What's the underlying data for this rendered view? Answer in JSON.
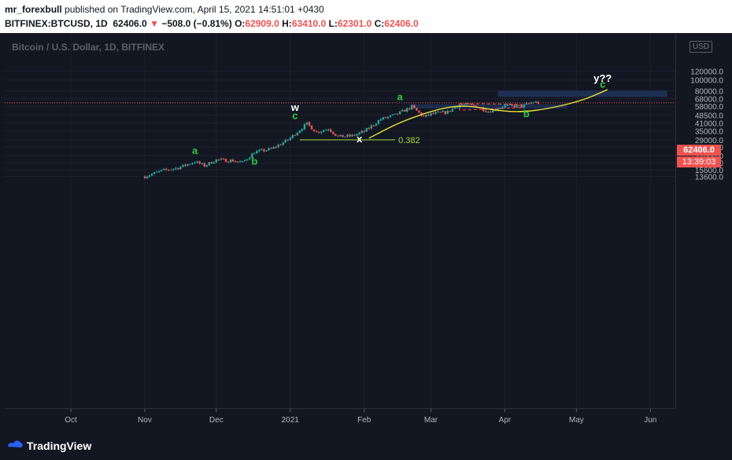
{
  "header": {
    "author": "mr_forexbull",
    "published_text": "published on TradingView.com, April 15, 2021 14:51:01 +0430",
    "symbol": "BITFINEX:BTCUSD, 1D",
    "last": "62406.0",
    "change_arrow": "▼",
    "change": "−508.0 (−0.81%)",
    "o_label": "O:",
    "o_value": "62909.0",
    "h_label": "H:",
    "h_value": "63410.0",
    "l_label": "L:",
    "l_value": "62301.0",
    "c_label": "C:",
    "c_value": "62406.0"
  },
  "chart_title": "Bitcoin / U.S. Dollar, 1D, BITFINEX",
  "currency_badge": "USD",
  "price_tag": "62406.0",
  "countdown": "13:39:03",
  "footer": {
    "brand": "TradingView"
  },
  "colors": {
    "up": "#26a69a",
    "down": "#ef5350",
    "wave": "#2ecc40",
    "curve": "#e8e337",
    "fib": "#a3d93f",
    "box": "#1e2f52",
    "background": "#131722"
  },
  "chart_data": {
    "type": "candlestick",
    "title": "Bitcoin / U.S. Dollar, 1D, BITFINEX",
    "scale": "log",
    "y_ticks": [
      13600,
      15600,
      18000,
      21000,
      25000,
      29000,
      35000,
      41000,
      48500,
      58000,
      68000,
      80000,
      100000,
      120000
    ],
    "y_tick_labels": [
      "13600.0",
      "15600.0",
      "18000.0",
      "21000.0",
      "25000.0",
      "29000.0",
      "35000.0",
      "41000.0",
      "48500.0",
      "58000.0",
      "68000.0",
      "80000.0",
      "100000.0",
      "120000.0"
    ],
    "x_labels": [
      "Oct",
      "Nov",
      "Dec",
      "2021",
      "Feb",
      "Mar",
      "Apr",
      "May",
      "Jun"
    ],
    "x_label_dates": [
      "2020-10-01",
      "2020-11-01",
      "2020-12-01",
      "2021-01-01",
      "2021-02-01",
      "2021-03-01",
      "2021-04-01",
      "2021-05-01",
      "2021-06-01"
    ],
    "last_price": 62406,
    "price_path": [
      [
        "2020-11-01",
        13600
      ],
      [
        "2020-11-08",
        15300
      ],
      [
        "2020-11-15",
        16300
      ],
      [
        "2020-11-22",
        18500
      ],
      [
        "2020-11-26",
        17000
      ],
      [
        "2020-12-01",
        19200
      ],
      [
        "2020-12-08",
        18900
      ],
      [
        "2020-12-12",
        18200
      ],
      [
        "2020-12-17",
        22500
      ],
      [
        "2020-12-24",
        24000
      ],
      [
        "2020-12-31",
        29000
      ],
      [
        "2021-01-08",
        40500
      ],
      [
        "2021-01-12",
        34000
      ],
      [
        "2021-01-17",
        36500
      ],
      [
        "2021-01-21",
        31000
      ],
      [
        "2021-01-27",
        31500
      ],
      [
        "2021-02-01",
        34500
      ],
      [
        "2021-02-08",
        44500
      ],
      [
        "2021-02-14",
        48500
      ],
      [
        "2021-02-21",
        57500
      ],
      [
        "2021-02-26",
        46500
      ],
      [
        "2021-03-01",
        49500
      ],
      [
        "2021-03-08",
        51500
      ],
      [
        "2021-03-13",
        60500
      ],
      [
        "2021-03-20",
        58500
      ],
      [
        "2021-03-25",
        52000
      ],
      [
        "2021-04-01",
        58800
      ],
      [
        "2021-04-08",
        58000
      ],
      [
        "2021-04-13",
        63300
      ],
      [
        "2021-04-15",
        62406
      ]
    ],
    "annotations": [
      {
        "text": "a",
        "date": "2020-11-22",
        "price": 21600,
        "color": "wave"
      },
      {
        "text": "b",
        "date": "2020-12-17",
        "price": 17400,
        "color": "wave"
      },
      {
        "text": "w",
        "date": "2021-01-03",
        "price": 53000,
        "color": "white"
      },
      {
        "text": "c",
        "date": "2021-01-03",
        "price": 44700,
        "color": "wave"
      },
      {
        "text": "x",
        "date": "2021-01-30",
        "price": 27500,
        "color": "white"
      },
      {
        "text": "a",
        "date": "2021-02-16",
        "price": 65800,
        "color": "wave"
      },
      {
        "text": "b",
        "date": "2021-04-10",
        "price": 46500,
        "color": "wave"
      },
      {
        "text": "y??",
        "date": "2021-05-12",
        "price": 96000,
        "color": "white"
      },
      {
        "text": "c",
        "date": "2021-05-12",
        "price": 85500,
        "color": "wave"
      }
    ],
    "fib_level": {
      "label": "0.382",
      "price": 29000,
      "from": "2021-01-05",
      "to": "2021-02-14"
    },
    "target_box": {
      "from": "2021-03-29",
      "to": "2021-06-08",
      "low": 70500,
      "high": 80000
    },
    "support_box": {
      "from": "2021-02-20",
      "to": "2021-04-27",
      "low": 55500,
      "high": 60500
    }
  }
}
